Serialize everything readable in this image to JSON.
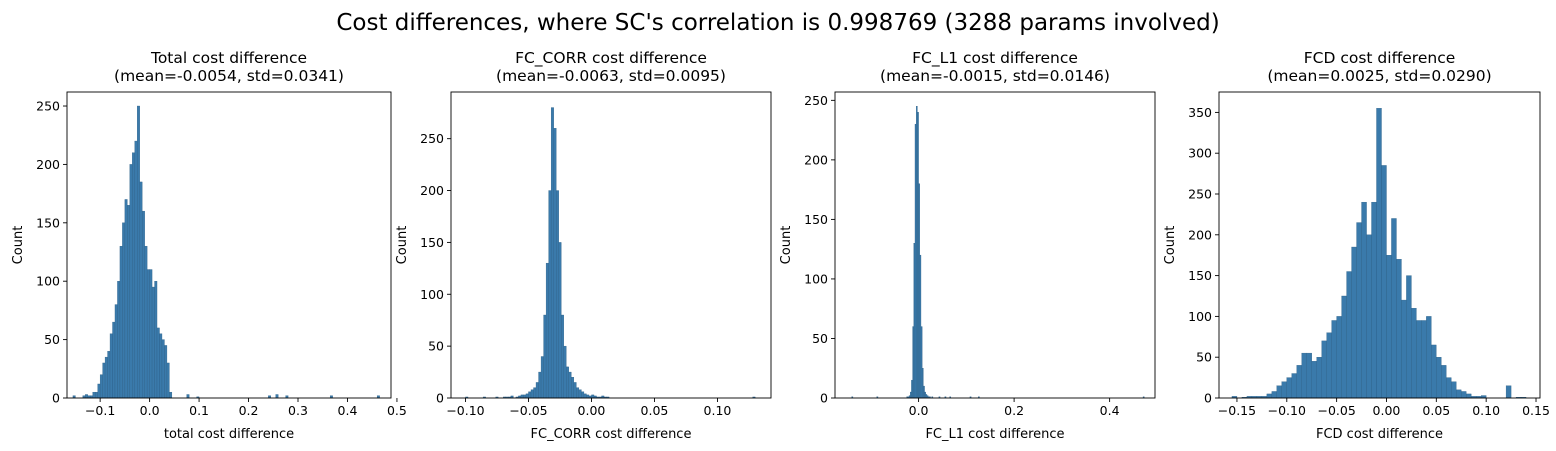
{
  "figure": {
    "suptitle": "Cost differences, where SC's correlation is 0.998769 (3288 params involved)"
  },
  "colors": {
    "bar_fill": "#3a7aab",
    "bar_edge": "#2c5f86",
    "axes": "#000000",
    "background": "#ffffff"
  },
  "chart_data": [
    {
      "type": "bar",
      "title": "Total cost difference",
      "subtitle": "(mean=-0.0054, std=0.0341)",
      "xlabel": "total cost difference",
      "ylabel": "Count",
      "xlim": [
        -0.167,
        0.488
      ],
      "ylim": [
        0,
        262
      ],
      "xticks": [
        -0.1,
        0.0,
        0.1,
        0.2,
        0.3,
        0.4,
        0.5
      ],
      "xtick_labels": [
        "−0.1",
        "0.0",
        "0.1",
        "0.2",
        "0.3",
        "0.4",
        "0.5"
      ],
      "yticks": [
        0,
        50,
        100,
        150,
        200,
        250
      ],
      "ytick_labels": [
        "0",
        "50",
        "100",
        "150",
        "200",
        "250"
      ],
      "bins": {
        "x0": -0.155,
        "width": 0.005,
        "counts": [
          2,
          0,
          0,
          0,
          2,
          3,
          2,
          2,
          5,
          5,
          12,
          20,
          30,
          35,
          40,
          55,
          65,
          80,
          100,
          130,
          150,
          170,
          165,
          200,
          210,
          220,
          250,
          185,
          160,
          130,
          110,
          110,
          95,
          100,
          60,
          55,
          50,
          45,
          30,
          5,
          0,
          0,
          0,
          0,
          0,
          0,
          3,
          0,
          0,
          0,
          1,
          0,
          0,
          0,
          0,
          0,
          0,
          0,
          0,
          0,
          0,
          0,
          0,
          0,
          0,
          0,
          0,
          0,
          0,
          0,
          0,
          0,
          0,
          0,
          0,
          0,
          0,
          0,
          0,
          2,
          0,
          0,
          3,
          0,
          0,
          0,
          2,
          0,
          0,
          0,
          0,
          0,
          0,
          0,
          0,
          0,
          0,
          0,
          0,
          0,
          0,
          0,
          0,
          0,
          2,
          0,
          0,
          0,
          0,
          0,
          0,
          0,
          0,
          0,
          0,
          0,
          0,
          0,
          0,
          0,
          0,
          0,
          0,
          2
        ]
      },
      "grid": false,
      "legend": "none"
    },
    {
      "type": "bar",
      "title": "FC_CORR cost difference",
      "subtitle": "(mean=-0.0063, std=0.0095)",
      "xlabel": "FC_CORR cost difference",
      "ylabel": "Count",
      "xlim": [
        -0.1115,
        0.1425
      ],
      "ylim": [
        0,
        295
      ],
      "xticks": [
        -0.1,
        -0.05,
        0.0,
        0.05,
        0.1
      ],
      "xtick_labels": [
        "−0.10",
        "−0.05",
        "0.00",
        "0.05",
        "0.10"
      ],
      "yticks": [
        0,
        50,
        100,
        150,
        200,
        250
      ],
      "ytick_labels": [
        "0",
        "50",
        "100",
        "150",
        "200",
        "250"
      ],
      "bins": {
        "x0": -0.1,
        "width": 0.002,
        "counts": [
          1,
          0,
          0,
          0,
          0,
          0,
          0,
          1,
          0,
          0,
          0,
          0,
          1,
          0,
          0,
          1,
          1,
          1,
          2,
          0,
          1,
          2,
          3,
          3,
          4,
          6,
          8,
          10,
          15,
          25,
          40,
          80,
          130,
          200,
          280,
          260,
          200,
          150,
          80,
          50,
          30,
          25,
          20,
          15,
          10,
          8,
          6,
          4,
          3,
          2,
          3,
          2,
          1,
          1,
          2,
          1,
          1,
          0,
          0,
          0,
          0,
          0,
          0,
          0,
          0,
          0,
          0,
          0,
          0,
          0,
          0,
          0,
          0,
          0,
          0,
          0,
          0,
          0,
          0,
          0,
          0,
          0,
          0,
          0,
          0,
          0,
          0,
          0,
          0,
          0,
          0,
          0,
          0,
          0,
          0,
          0,
          0,
          0,
          0,
          0,
          0,
          0,
          0,
          0,
          0,
          0,
          0,
          0,
          0,
          0,
          0,
          0,
          0,
          0,
          1
        ]
      },
      "grid": false,
      "legend": "none"
    },
    {
      "type": "bar",
      "title": "FC_L1 cost difference",
      "subtitle": "(mean=-0.0015, std=0.0146)",
      "xlabel": "FC_L1 cost difference",
      "ylabel": "Count",
      "xlim": [
        -0.175,
        0.495
      ],
      "ylim": [
        0,
        257
      ],
      "xticks": [
        0.0,
        0.2,
        0.4
      ],
      "xtick_labels": [
        "0.0",
        "0.2",
        "0.4"
      ],
      "yticks": [
        0,
        50,
        100,
        150,
        200,
        250
      ],
      "ytick_labels": [
        "0",
        "50",
        "100",
        "150",
        "200",
        "250"
      ],
      "bins": {
        "x0": -0.14,
        "width": 0.0025,
        "counts": [
          1,
          0,
          0,
          0,
          0,
          0,
          0,
          0,
          0,
          0,
          0,
          0,
          0,
          0,
          0,
          0,
          0,
          0,
          0,
          0,
          0,
          1,
          0,
          0,
          0,
          0,
          0,
          0,
          0,
          0,
          0,
          0,
          0,
          0,
          0,
          0,
          0,
          0,
          0,
          0,
          0,
          0,
          0,
          0,
          0,
          0,
          1,
          1,
          2,
          5,
          15,
          60,
          130,
          230,
          245,
          240,
          180,
          120,
          60,
          25,
          10,
          5,
          3,
          2,
          1,
          1,
          0,
          1,
          0,
          0,
          0,
          0,
          0,
          1,
          0,
          0,
          0,
          0,
          1,
          0,
          0,
          0,
          1,
          0,
          0,
          0,
          0,
          0,
          0,
          0,
          0,
          0,
          0,
          0,
          0,
          0,
          0,
          0,
          0,
          1,
          0,
          0,
          0,
          0,
          0,
          0,
          1,
          0,
          0,
          0,
          0,
          0,
          0,
          0,
          0,
          0,
          0,
          0,
          0,
          0,
          0,
          0,
          0,
          0,
          0,
          0,
          0,
          0,
          0,
          0,
          0,
          0,
          0,
          0,
          0,
          0,
          0,
          0,
          0,
          0,
          0,
          0,
          0,
          0,
          0,
          0,
          0,
          0,
          0,
          0,
          0,
          0,
          0,
          0,
          0,
          0,
          0,
          0,
          0,
          0,
          0,
          0,
          0,
          0,
          0,
          0,
          0,
          0,
          0,
          0,
          0,
          0,
          0,
          0,
          0,
          0,
          0,
          0,
          0,
          0,
          0,
          0,
          0,
          0,
          0,
          0,
          0,
          0,
          0,
          0,
          0,
          0,
          0,
          0,
          0,
          0,
          0,
          0,
          0,
          0,
          0,
          0,
          0,
          0,
          0,
          0,
          0,
          0,
          0,
          0,
          0,
          0,
          0,
          0,
          0,
          0,
          0,
          0,
          0,
          0,
          0,
          0,
          0,
          0,
          0,
          0,
          0,
          0,
          0,
          0,
          0,
          0,
          0,
          0,
          0,
          0,
          0,
          0,
          0,
          0,
          0,
          0,
          0,
          0,
          1
        ]
      },
      "grid": false,
      "legend": "none"
    },
    {
      "type": "bar",
      "title": "FCD cost difference",
      "subtitle": "(mean=0.0025, std=0.0290)",
      "xlabel": "FCD cost difference",
      "ylabel": "Count",
      "xlim": [
        -0.168,
        0.154
      ],
      "ylim": [
        0,
        375
      ],
      "xticks": [
        -0.15,
        -0.1,
        -0.05,
        0.0,
        0.05,
        0.1,
        0.15
      ],
      "xtick_labels": [
        "−0.15",
        "−0.10",
        "−0.05",
        "0.00",
        "0.05",
        "0.10",
        "0.15"
      ],
      "yticks": [
        0,
        50,
        100,
        150,
        200,
        250,
        300,
        350
      ],
      "ytick_labels": [
        "0",
        "50",
        "100",
        "150",
        "200",
        "250",
        "300",
        "350"
      ],
      "bins": {
        "x0": -0.155,
        "width": 0.005,
        "counts": [
          2,
          0,
          1,
          2,
          2,
          2,
          2,
          5,
          8,
          15,
          20,
          25,
          30,
          40,
          55,
          55,
          45,
          50,
          70,
          80,
          95,
          100,
          125,
          155,
          185,
          215,
          240,
          200,
          240,
          355,
          285,
          175,
          220,
          170,
          120,
          150,
          110,
          95,
          95,
          100,
          65,
          50,
          40,
          25,
          20,
          10,
          8,
          5,
          2,
          2,
          3,
          0,
          0,
          0,
          0,
          15,
          0,
          1,
          1
        ]
      },
      "grid": false,
      "legend": "none"
    }
  ]
}
